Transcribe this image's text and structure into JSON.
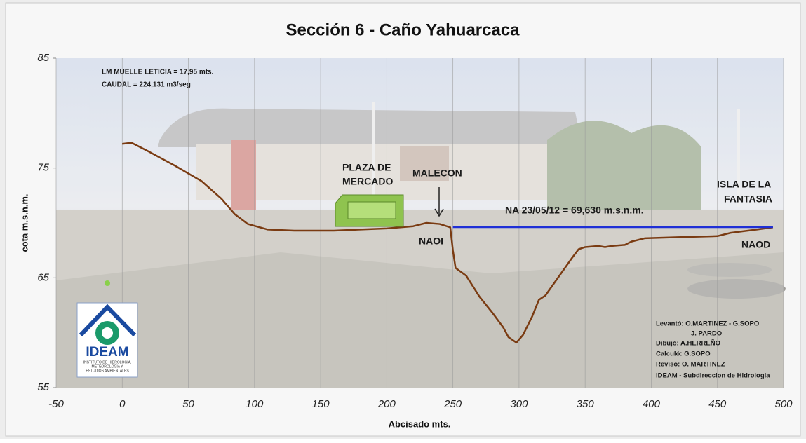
{
  "chart_data": {
    "type": "line",
    "title": "Sección 6 - Caño Yahuarcaca",
    "x_label": "Abcisado mts.",
    "y_label": "cota m.s.n.m.",
    "xlim": [
      -50,
      500
    ],
    "ylim": [
      55,
      85
    ],
    "xticks": [
      -50,
      0,
      50,
      100,
      150,
      200,
      250,
      300,
      350,
      400,
      450,
      500
    ],
    "yticks": [
      55,
      65,
      75,
      85
    ],
    "grid": "x",
    "series": [
      {
        "color": "#7a3b12",
        "x": [
          0,
          7,
          20,
          40,
          60,
          75,
          85,
          95,
          110,
          130,
          160,
          200,
          220,
          230,
          240,
          248,
          250,
          252,
          260,
          270,
          280,
          288,
          292,
          298,
          303,
          310,
          315,
          320,
          330,
          340,
          345,
          350,
          360,
          365,
          370,
          380,
          385,
          395,
          420,
          450,
          460,
          480,
          492
        ],
        "values": [
          77.2,
          77.3,
          76.5,
          75.2,
          73.8,
          72.2,
          70.8,
          69.9,
          69.4,
          69.3,
          69.3,
          69.5,
          69.7,
          70.0,
          69.9,
          69.6,
          67.5,
          65.9,
          65.2,
          63.3,
          61.8,
          60.5,
          59.6,
          59.1,
          59.8,
          61.5,
          63.0,
          63.4,
          65.1,
          66.8,
          67.6,
          67.8,
          67.9,
          67.8,
          67.9,
          68.0,
          68.3,
          68.6,
          68.7,
          68.8,
          69.1,
          69.4,
          69.6
        ]
      },
      {
        "color": "#1f2fd6",
        "x": [
          250,
          492
        ],
        "values": [
          69.63,
          69.63
        ]
      }
    ],
    "annotations": [
      "LM MUELLE LETICIA = 17,95 mts.",
      "CAUDAL = 224,131 m3/seg",
      "PLAZA DE",
      "MERCADO",
      "MALECON",
      "NA 23/05/12 = 69,630 m.s.n.m.",
      "NAOI",
      "ISLA DE LA",
      "FANTASIA",
      "NAOD"
    ],
    "credits": [
      "Levantó: O.MARTINEZ - G.SOPO",
      "J. PARDO",
      "Dibujó:   A.HERREÑO",
      "Calculó:   G.SOPO",
      "Revisó:   O. MARTINEZ",
      "IDEAM - Subdireccion de Hidrologia"
    ],
    "logo": [
      "IDEAM",
      "INSTITUTO DE HIDROLOGIA,",
      "METEOROLOGIA Y",
      "ESTUDIOS AMBIENTALES"
    ]
  }
}
